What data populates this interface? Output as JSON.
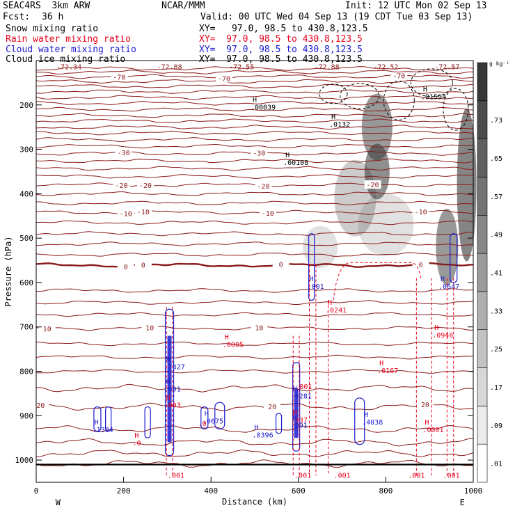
{
  "header": {
    "project": "SEAC4RS  3km ARW",
    "center": "NCAR/MMM",
    "init": "Init: 12 UTC Mon 02 Sep 13",
    "fcst_label": "Fcst:",
    "fcst_value": "36 h",
    "valid": "Valid: 00 UTC Wed 04 Sep 13 (19 CDT Tue 03 Sep 13)"
  },
  "fields": [
    {
      "name": "Snow mixing ratio",
      "color": "#000000",
      "xy": "XY=   97.0, 98.5 to 430.8,123.5"
    },
    {
      "name": "Rain water mixing ratio",
      "color": "#e8001c",
      "xy": "XY=  97.0, 98.5 to 430.8,123.5"
    },
    {
      "name": "Cloud water mixing ratio",
      "color": "#1a1acc",
      "xy": "XY=  97.0, 98.5 to 430.8,123.5"
    },
    {
      "name": "Cloud ice mixing ratio",
      "color": "#000000",
      "xy": "XY=  97.0, 98.5 to 430.8,123.5"
    }
  ],
  "chart_data": {
    "type": "contour",
    "xlabel": "Distance (km)",
    "ylabel": "Pressure (hPa)",
    "xlim": [
      0,
      1000
    ],
    "ylim": [
      1050,
      100
    ],
    "x_ticks": [
      "0",
      "200",
      "400",
      "600",
      "800",
      "1000"
    ],
    "y_ticks": [
      "200",
      "300",
      "400",
      "500",
      "600",
      "700",
      "800",
      "900",
      "1000"
    ],
    "x_end_labels": {
      "left": "W",
      "right": "E"
    },
    "colorbar": {
      "unit": "g kg⁻¹",
      "levels": [
        ".01",
        ".09",
        ".17",
        ".25",
        ".33",
        ".41",
        ".49",
        ".57",
        ".65",
        ".73"
      ]
    },
    "temperature_lines": [
      {
        "p": 1008,
        "label": ""
      },
      {
        "p": 985,
        "label": ""
      },
      {
        "p": 960,
        "label": ""
      },
      {
        "p": 930,
        "label": ""
      },
      {
        "p": 880,
        "label": "20",
        "label_x": [
          10,
          540,
          890
        ]
      },
      {
        "p": 838,
        "label": ""
      },
      {
        "p": 800,
        "label": ""
      },
      {
        "p": 768,
        "label": ""
      },
      {
        "p": 738,
        "label": ""
      },
      {
        "p": 703,
        "label": "10",
        "label_x": [
          25,
          260,
          510
        ]
      },
      {
        "p": 672,
        "label": ""
      },
      {
        "p": 645,
        "label": ""
      },
      {
        "p": 618,
        "label": ""
      },
      {
        "p": 561,
        "label": "0",
        "label_x": [
          205,
          245,
          560,
          880
        ],
        "bold": true
      },
      {
        "p": 537,
        "label": ""
      },
      {
        "p": 513,
        "label": ""
      },
      {
        "p": 490,
        "label": ""
      },
      {
        "p": 465,
        "label": ""
      },
      {
        "p": 442,
        "label": "-10",
        "label_x": [
          205,
          245,
          530,
          880
        ]
      },
      {
        "p": 421,
        "label": ""
      },
      {
        "p": 400,
        "label": ""
      },
      {
        "p": 380,
        "label": "-20",
        "label_x": [
          195,
          250,
          520,
          770
        ]
      },
      {
        "p": 361,
        "label": ""
      },
      {
        "p": 343,
        "label": ""
      },
      {
        "p": 326,
        "label": ""
      },
      {
        "p": 309,
        "label": "-30",
        "label_x": [
          200,
          510
        ]
      },
      {
        "p": 293,
        "label": ""
      },
      {
        "p": 278,
        "label": ""
      },
      {
        "p": 263,
        "label": ""
      },
      {
        "p": 250,
        "label": ""
      },
      {
        "p": 236,
        "label": ""
      },
      {
        "p": 224,
        "label": ""
      },
      {
        "p": 210,
        "label": ""
      },
      {
        "p": 196,
        "label": ""
      },
      {
        "p": 183,
        "label": ""
      },
      {
        "p": 170,
        "label": ""
      },
      {
        "p": 158,
        "label": ""
      },
      {
        "p": 147,
        "label": ""
      },
      {
        "p": 136,
        "label": "-70",
        "label_x": [
          190,
          430,
          830
        ]
      },
      {
        "p": 126,
        "label": ""
      },
      {
        "p": 118,
        "label": ""
      }
    ],
    "top_labels": [
      {
        "x": 75,
        "text": "-72.34"
      },
      {
        "x": 305,
        "text": "-72.88"
      },
      {
        "x": 470,
        "text": "-72.55"
      },
      {
        "x": 665,
        "text": "-72.88"
      },
      {
        "x": 800,
        "text": "-72.52"
      },
      {
        "x": 940,
        "text": "-72.57"
      }
    ],
    "highs": [
      {
        "x": 500,
        "p": 193,
        "value": ".00039",
        "color": "#000000"
      },
      {
        "x": 575,
        "p": 318,
        "value": ".00108",
        "color": "#000000"
      },
      {
        "x": 680,
        "p": 232,
        "value": ".0132",
        "color": "#000000"
      },
      {
        "x": 890,
        "p": 170,
        "value": ".01594",
        "color": "#000000"
      },
      {
        "x": 138,
        "p": 920,
        "value": ".1304",
        "color": "#1a1acc"
      },
      {
        "x": 504,
        "p": 932,
        "value": ".0396",
        "color": "#1a1acc"
      },
      {
        "x": 302,
        "p": 778,
        "value": ".7327",
        "color": "#1a1acc"
      },
      {
        "x": 302,
        "p": 828,
        "value": ".601",
        "color": "#1a1acc"
      },
      {
        "x": 592,
        "p": 844,
        "value": ".6281",
        "color": "#1a1acc"
      },
      {
        "x": 592,
        "p": 910,
        "value": ".001",
        "color": "#1a1acc"
      },
      {
        "x": 630,
        "p": 597,
        "value": ".001",
        "color": "#1a1acc"
      },
      {
        "x": 930,
        "p": 597,
        "value": ".0647",
        "color": "#1a1acc"
      },
      {
        "x": 755,
        "p": 903,
        "value": ".4038",
        "color": "#1a1acc"
      },
      {
        "x": 390,
        "p": 900,
        "value": ".0675",
        "color": "#1a1acc"
      },
      {
        "x": 230,
        "p": 950,
        "value": ".0",
        "color": "#e8001c"
      },
      {
        "x": 302,
        "p": 864,
        "value": ".003",
        "color": "#e8001c"
      },
      {
        "x": 436,
        "p": 728,
        "value": ".0005",
        "color": "#e8001c"
      },
      {
        "x": 592,
        "p": 898,
        "value": ".237",
        "color": "#e8001c"
      },
      {
        "x": 672,
        "p": 650,
        "value": ".0241",
        "color": "#e8001c"
      },
      {
        "x": 790,
        "p": 787,
        "value": ".0167",
        "color": "#e8001c"
      },
      {
        "x": 916,
        "p": 707,
        "value": ".0946",
        "color": "#e8001c"
      },
      {
        "x": 894,
        "p": 920,
        "value": ".0001",
        "color": "#e8001c"
      }
    ],
    "red_small_labels": [
      {
        "x": 320,
        "p": 1040,
        "text": ".001"
      },
      {
        "x": 612,
        "p": 840,
        "text": ".001"
      },
      {
        "x": 610,
        "p": 1040,
        "text": ".001"
      },
      {
        "x": 700,
        "p": 1040,
        "text": ".001"
      },
      {
        "x": 870,
        "p": 1040,
        "text": ".001"
      },
      {
        "x": 950,
        "p": 1040,
        "text": ".001"
      },
      {
        "x": 380,
        "p": 923,
        "text": ".0"
      }
    ]
  }
}
